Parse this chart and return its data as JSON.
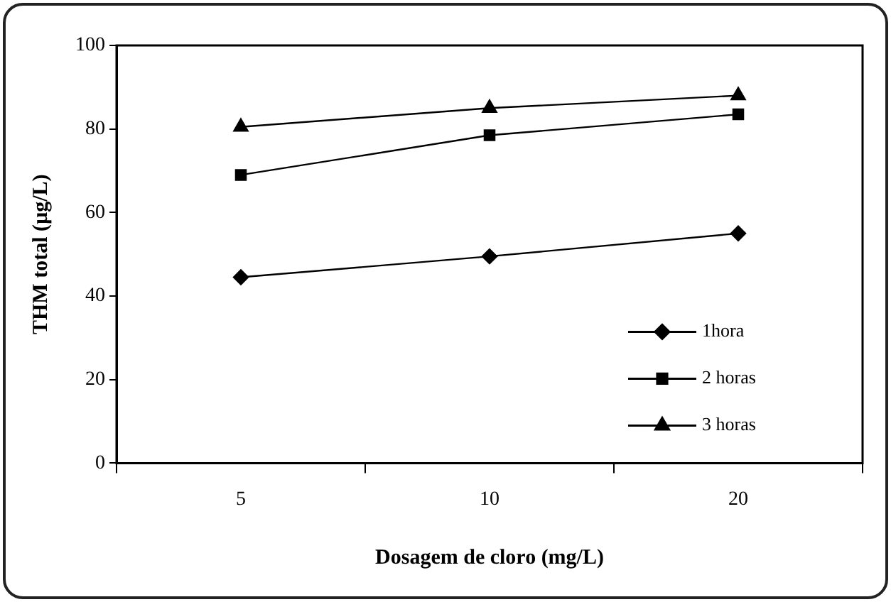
{
  "chart_data": {
    "type": "line",
    "xlabel": "Dosagem de cloro (mg/L)",
    "ylabel": "THM total (µg/L)",
    "categories": [
      "5",
      "10",
      "20"
    ],
    "ylim": [
      0,
      100
    ],
    "yticks": [
      0,
      20,
      40,
      60,
      80,
      100
    ],
    "grid": false,
    "legend": "bottom right",
    "series": [
      {
        "name": "1hora",
        "color": "#000000",
        "marker": "diamond",
        "values": [
          44.5,
          49.5,
          55
        ]
      },
      {
        "name": "2 horas",
        "color": "#000000",
        "marker": "square",
        "values": [
          69,
          78.5,
          83.5
        ]
      },
      {
        "name": "3 horas",
        "color": "#000000",
        "marker": "triangle",
        "values": [
          80.5,
          85,
          88
        ]
      }
    ]
  }
}
